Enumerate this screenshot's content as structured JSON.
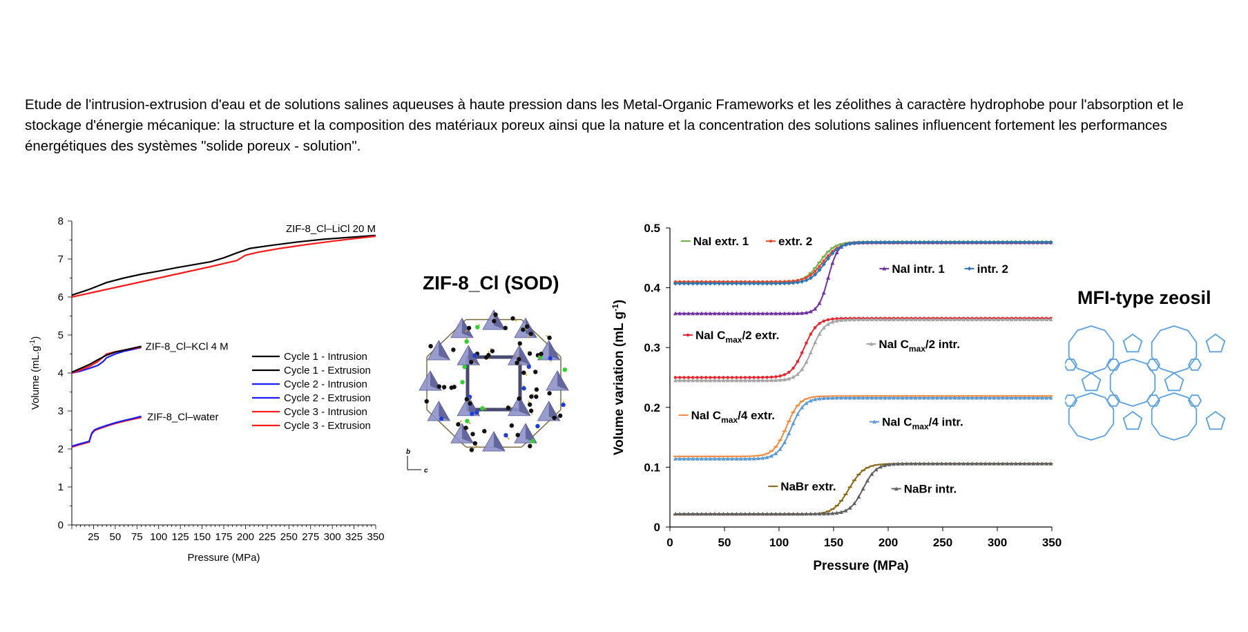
{
  "intro_text": "Etude de l'intrusion-extrusion d'eau et de solutions salines aqueuses à haute pression dans les Metal-Organic Frameworks et les zéolithes à caractère hydrophobe pour l'absorption et le stockage d'énergie mécanique: la structure et la composition des matériaux poreux ainsi que la nature et la concentration des solutions salines influencent fortement les performances énergétiques des systèmes \"solide poreux - solution\".",
  "structure_sod": {
    "title": "ZIF-8_Cl (SOD)",
    "axis_b": "b",
    "axis_c": "c"
  },
  "structure_mfi": {
    "title": "MFI-type zeosil"
  },
  "chart_data": [
    {
      "type": "line",
      "xlabel": "Pressure (MPa)",
      "ylabel": "Volume (mL.g",
      "ylabel_sup": "-1",
      "ylabel_end": ")",
      "xlim": [
        0,
        350
      ],
      "ylim": [
        0,
        8
      ],
      "xticks": [
        25,
        50,
        75,
        100,
        125,
        150,
        175,
        200,
        225,
        250,
        275,
        300,
        325,
        350
      ],
      "yticks": [
        0,
        1,
        2,
        3,
        4,
        5,
        6,
        7,
        8
      ],
      "legend": [
        {
          "label": "Cycle 1 - Intrusion",
          "color": "#000000"
        },
        {
          "label": "Cycle 1 - Extrusion",
          "color": "#000000"
        },
        {
          "label": "Cycle 2 - Intrusion",
          "color": "#1a1aff"
        },
        {
          "label": "Cycle 2 - Extrusion",
          "color": "#1a1aff"
        },
        {
          "label": "Cycle 3 - Intrusion",
          "color": "#ff1a1a"
        },
        {
          "label": "Cycle 3 - Extrusion",
          "color": "#ff1a1a"
        }
      ],
      "annotations": [
        {
          "text": "ZIF-8_Cl–LiCl 20 M",
          "x": 350,
          "y": 7.8
        },
        {
          "text": "ZIF-8_Cl–KCl 4 M",
          "x": 80,
          "y": 4.7
        },
        {
          "text": "ZIF-8_Cl–water",
          "x": 82,
          "y": 2.85
        }
      ],
      "series": [
        {
          "color": "#000000",
          "x": [
            0,
            20,
            40,
            60,
            80,
            100,
            120,
            140,
            160,
            175,
            190,
            205,
            230,
            260,
            290,
            320,
            350
          ],
          "y": [
            6.05,
            6.2,
            6.38,
            6.5,
            6.6,
            6.68,
            6.77,
            6.85,
            6.93,
            7.03,
            7.16,
            7.28,
            7.36,
            7.45,
            7.52,
            7.57,
            7.62
          ]
        },
        {
          "color": "#ff1a1a",
          "x": [
            0,
            20,
            40,
            60,
            80,
            100,
            120,
            140,
            160,
            175,
            190,
            200,
            215,
            240,
            270,
            300,
            330,
            350
          ],
          "y": [
            6.0,
            6.1,
            6.2,
            6.3,
            6.4,
            6.5,
            6.6,
            6.7,
            6.8,
            6.88,
            6.96,
            7.1,
            7.18,
            7.28,
            7.38,
            7.47,
            7.55,
            7.6
          ]
        },
        {
          "color": "#1a1aff",
          "x": [
            0,
            10,
            20,
            30,
            36,
            40,
            50,
            60,
            70,
            80
          ],
          "y": [
            4.0,
            4.05,
            4.12,
            4.2,
            4.3,
            4.4,
            4.5,
            4.57,
            4.62,
            4.67
          ]
        },
        {
          "color": "#ff1a1a",
          "x": [
            0,
            10,
            20,
            30,
            36,
            40,
            50,
            60,
            70,
            80
          ],
          "y": [
            4.0,
            4.08,
            4.17,
            4.3,
            4.42,
            4.5,
            4.56,
            4.6,
            4.64,
            4.68
          ]
        },
        {
          "color": "#000000",
          "x": [
            0,
            10,
            20,
            30,
            40,
            50,
            60,
            70,
            80
          ],
          "y": [
            4.02,
            4.12,
            4.22,
            4.35,
            4.47,
            4.55,
            4.6,
            4.65,
            4.7
          ]
        },
        {
          "color": "#ff1a1a",
          "x": [
            0,
            10,
            20,
            23,
            26,
            30,
            40,
            50,
            60,
            70,
            80
          ],
          "y": [
            2.05,
            2.12,
            2.18,
            2.4,
            2.48,
            2.52,
            2.6,
            2.67,
            2.73,
            2.78,
            2.83
          ]
        },
        {
          "color": "#1a1aff",
          "x": [
            0,
            10,
            20,
            23,
            26,
            30,
            40,
            50,
            60,
            70,
            80
          ],
          "y": [
            2.07,
            2.14,
            2.2,
            2.42,
            2.5,
            2.54,
            2.62,
            2.69,
            2.75,
            2.8,
            2.86
          ]
        }
      ]
    },
    {
      "type": "line",
      "xlabel": "Pressure (MPa)",
      "ylabel": "Volume variation  (mL g",
      "ylabel_sup": "-1",
      "ylabel_end": ")",
      "xlim": [
        0,
        350
      ],
      "ylim": [
        0,
        0.5
      ],
      "xticks": [
        0,
        50,
        100,
        150,
        200,
        250,
        300,
        350
      ],
      "yticks": [
        0,
        0.1,
        0.2,
        0.3,
        0.4,
        0.5
      ],
      "ytick_labels": [
        "0",
        "0.1",
        "0.2",
        "0.3",
        "0.4",
        "0.5"
      ],
      "series": [
        {
          "name": "NaI extr. 1",
          "color": "#70ad47",
          "marker": "dash",
          "base": 0.408,
          "top": 0.477,
          "mid": 137,
          "width": 7
        },
        {
          "name": "extr. 2",
          "color": "#e64a2e",
          "marker": "dot",
          "base": 0.41,
          "top": 0.475,
          "mid": 140,
          "width": 7
        },
        {
          "name": "NaI intr. 1",
          "color": "#7030a0",
          "marker": "triangle",
          "base": 0.357,
          "top": 0.476,
          "mid": 145,
          "width": 4.5
        },
        {
          "name": "intr. 2",
          "color": "#2e75b6",
          "marker": "diamond",
          "base": 0.407,
          "top": 0.476,
          "mid": 142,
          "width": 7
        },
        {
          "name": "NaI Cmax/2 extr.",
          "color": "#e6262e",
          "marker": "dot",
          "base": 0.25,
          "top": 0.349,
          "mid": 123,
          "width": 6
        },
        {
          "name": "NaI Cmax/2 intr.",
          "color": "#a6a6a6",
          "marker": "triangle",
          "base": 0.245,
          "top": 0.347,
          "mid": 130,
          "width": 6
        },
        {
          "name": "NaI Cmax/4 extr.",
          "color": "#f58a3c",
          "marker": "dash",
          "base": 0.118,
          "top": 0.219,
          "mid": 107,
          "width": 6
        },
        {
          "name": "NaI Cmax/4 intr.",
          "color": "#5b9bd5",
          "marker": "triangle",
          "base": 0.114,
          "top": 0.216,
          "mid": 111,
          "width": 6
        },
        {
          "name": "NaBr extr.",
          "color": "#8b6914",
          "marker": "dash",
          "base": 0.021,
          "top": 0.106,
          "mid": 164,
          "width": 7
        },
        {
          "name": "NaBr intr.",
          "color": "#606060",
          "marker": "triangle",
          "base": 0.022,
          "top": 0.106,
          "mid": 177,
          "width": 6
        }
      ],
      "legend_labels": [
        {
          "text": "NaI extr. 1",
          "series": 0,
          "x": 10,
          "y": 0.478
        },
        {
          "text": "extr. 2",
          "series": 1,
          "x": 88,
          "y": 0.478
        },
        {
          "text": "NaI intr. 1",
          "series": 2,
          "x": 192,
          "y": 0.432
        },
        {
          "text": "intr. 2",
          "series": 3,
          "x": 270,
          "y": 0.432
        },
        {
          "text": "NaI C",
          "sub": "max",
          "tail": "/2 extr.",
          "series": 4,
          "x": 12,
          "y": 0.321
        },
        {
          "text": "NaI C",
          "sub": "max",
          "tail": "/2 intr.",
          "series": 5,
          "x": 180,
          "y": 0.306
        },
        {
          "text": "NaI C",
          "sub": "max",
          "tail": "/4 extr.",
          "series": 6,
          "x": 8,
          "y": 0.187
        },
        {
          "text": "NaI C",
          "sub": "max",
          "tail": "/4 intr.",
          "series": 7,
          "x": 183,
          "y": 0.176
        },
        {
          "text": "NaBr extr.",
          "series": 8,
          "x": 90,
          "y": 0.068
        },
        {
          "text": "NaBr intr.",
          "series": 9,
          "x": 203,
          "y": 0.064
        }
      ]
    }
  ]
}
